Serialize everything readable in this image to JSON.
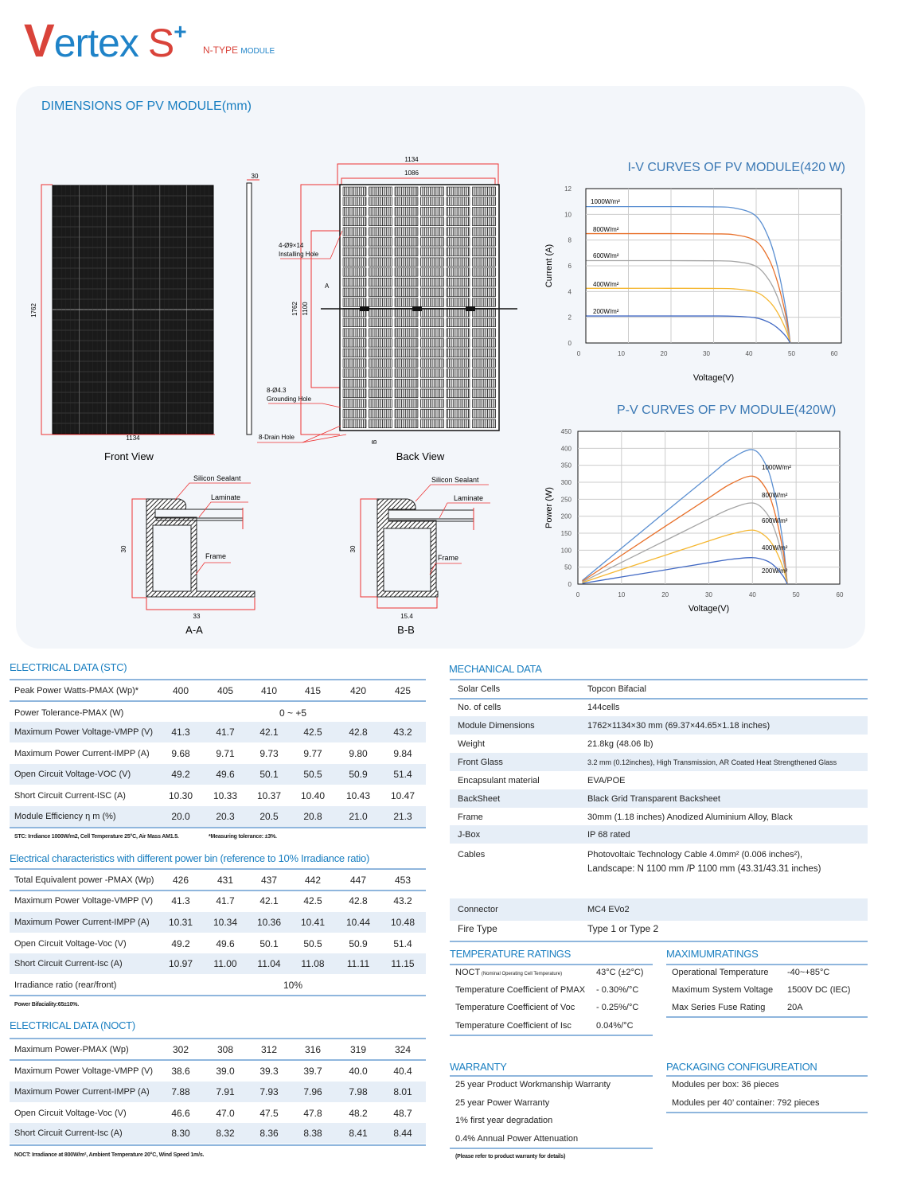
{
  "brand": {
    "logo_v": "V",
    "logo_rest": "ertex",
    "logo_s": "S",
    "logo_plus": "+",
    "type_red": "N-TYPE",
    "type_blue": "MODULE"
  },
  "dimensions": {
    "title": "DIMENSIONS OF PV MODULE(mm)",
    "front_view": "Front View",
    "back_view": "Back View",
    "front_height": "1762",
    "front_width": "1134",
    "side_thickness": "30",
    "back_outer_width": "1134",
    "back_inner_width": "1086",
    "back_height": "1762",
    "back_mount": "1100",
    "installing_hole_spec": "4-Ø9×14",
    "installing_hole": "Installing  Hole",
    "grounding_hole_spec": "8-Ø4.3",
    "grounding_hole": "Grounding Hole",
    "drain_hole": "8-Drain Hole",
    "section_a_marker": "A",
    "section_b_marker": "B",
    "sections": [
      {
        "name": "A-A",
        "height": "30",
        "width": "33",
        "sealant": "Silicon Sealant",
        "laminate": "Laminate",
        "frame": "Frame"
      },
      {
        "name": "B-B",
        "height": "30",
        "width": "15.4",
        "sealant": "Silicon Sealant",
        "laminate": "Laminate",
        "frame": "Frame"
      }
    ]
  },
  "chart_data": [
    {
      "type": "line",
      "title": "I-V CURVES OF PV MODULE(420 W)",
      "xlabel": "Voltage(V)",
      "ylabel": "Current (A)",
      "xlim": [
        0,
        60
      ],
      "ylim": [
        0,
        12
      ],
      "xticks": [
        0,
        10,
        20,
        30,
        40,
        50,
        60
      ],
      "yticks": [
        0,
        2,
        4,
        6,
        8,
        10,
        12
      ],
      "grid": true,
      "x": [
        1,
        10,
        20,
        30,
        35,
        40,
        43,
        45,
        47,
        48
      ],
      "series": [
        {
          "name": "1000W/m²",
          "color": "#5b8fd1",
          "values": [
            10.6,
            10.6,
            10.6,
            10.58,
            10.5,
            9.9,
            8.2,
            6.0,
            2.6,
            0
          ]
        },
        {
          "name": "800W/m²",
          "color": "#e8702a",
          "values": [
            8.5,
            8.5,
            8.5,
            8.48,
            8.42,
            7.94,
            6.58,
            4.81,
            2.09,
            0
          ]
        },
        {
          "name": "600W/m²",
          "color": "#a5a5a5",
          "values": [
            6.4,
            6.4,
            6.4,
            6.39,
            6.34,
            5.98,
            4.95,
            3.62,
            1.57,
            0
          ]
        },
        {
          "name": "400W/m²",
          "color": "#f5b731",
          "values": [
            4.25,
            4.25,
            4.25,
            4.24,
            4.21,
            3.97,
            3.29,
            2.41,
            1.04,
            0
          ]
        },
        {
          "name": "200W/m²",
          "color": "#4169c4",
          "values": [
            2.1,
            2.1,
            2.1,
            2.1,
            2.08,
            1.96,
            1.62,
            1.19,
            0.52,
            0
          ]
        }
      ]
    },
    {
      "type": "line",
      "title": "P-V CURVES OF PV MODULE(420W)",
      "xlabel": "Voltage(V)",
      "ylabel": "Power (W)",
      "xlim": [
        0,
        60
      ],
      "ylim": [
        0,
        450
      ],
      "xticks": [
        0,
        10,
        20,
        30,
        40,
        50,
        60
      ],
      "yticks": [
        0,
        50,
        100,
        150,
        200,
        250,
        300,
        350,
        400,
        450
      ],
      "grid": true,
      "x": [
        1,
        10,
        20,
        30,
        35,
        40,
        43,
        45,
        47,
        48
      ],
      "series": [
        {
          "name": "1000W/m²",
          "color": "#5b8fd1",
          "values": [
            10.6,
            106,
            212,
            317,
            368,
            396,
            353,
            270,
            122,
            0
          ]
        },
        {
          "name": "800W/m²",
          "color": "#e8702a",
          "values": [
            8.5,
            85,
            170,
            254,
            295,
            318,
            283,
            216,
            98,
            0
          ]
        },
        {
          "name": "600W/m²",
          "color": "#a5a5a5",
          "values": [
            6.4,
            64,
            128,
            192,
            222,
            239,
            213,
            163,
            74,
            0
          ]
        },
        {
          "name": "400W/m²",
          "color": "#f5b731",
          "values": [
            4.3,
            43,
            85,
            127,
            147,
            159,
            141,
            108,
            49,
            0
          ]
        },
        {
          "name": "200W/m²",
          "color": "#4169c4",
          "values": [
            2.1,
            21,
            42,
            63,
            73,
            78,
            70,
            54,
            24,
            0
          ]
        }
      ]
    }
  ],
  "stc": {
    "title": "ELECTRICAL DATA (STC)",
    "rows": [
      {
        "label": "Peak Power Watts-PMAX (Wp)*",
        "values": [
          "400",
          "405",
          "410",
          "415",
          "420",
          "425"
        ]
      },
      {
        "label": "Power Tolerance-PMAX (W)",
        "span": "0 ~ +5"
      },
      {
        "label": "Maximum Power Voltage-VMPP (V)",
        "values": [
          "41.3",
          "41.7",
          "42.1",
          "42.5",
          "42.8",
          "43.2"
        ],
        "shade": true
      },
      {
        "label": "Maximum Power Current-IMPP (A)",
        "values": [
          "9.68",
          "9.71",
          "9.73",
          "9.77",
          "9.80",
          "9.84"
        ]
      },
      {
        "label": "Open Circuit Voltage-VOC (V)",
        "values": [
          "49.2",
          "49.6",
          "50.1",
          "50.5",
          "50.9",
          "51.4"
        ],
        "shade": true
      },
      {
        "label": "Short Circuit Current-ISC (A)",
        "values": [
          "10.30",
          "10.33",
          "10.37",
          "10.40",
          "10.43",
          "10.47"
        ]
      },
      {
        "label": "Module Efficiency η m (%)",
        "values": [
          "20.0",
          "20.3",
          "20.5",
          "20.8",
          "21.0",
          "21.3"
        ],
        "shade": true
      }
    ],
    "note": "STC: Irrdiance 1000W/m2, Cell Temperature 25°C, Air Mass AM1.5.",
    "note2": "*Measuring tolerance: ±3%."
  },
  "bifacial": {
    "title": "Electrical characteristics with different power bin (reference to 10%  Irradiance ratio)",
    "rows": [
      {
        "label": "Total Equivalent power -PMAX (Wp)",
        "values": [
          "426",
          "431",
          "437",
          "442",
          "447",
          "453"
        ]
      },
      {
        "label": "Maximum Power Voltage-VMPP  (V)",
        "values": [
          "41.3",
          "41.7",
          "42.1",
          "42.5",
          "42.8",
          "43.2"
        ]
      },
      {
        "label": "Maximum Power Current-IMPP (A)",
        "values": [
          "10.31",
          "10.34",
          "10.36",
          "10.41",
          "10.44",
          "10.48"
        ],
        "shade": true
      },
      {
        "label": "Open Circuit Voltage-Voc  (V)",
        "values": [
          "49.2",
          "49.6",
          "50.1",
          "50.5",
          "50.9",
          "51.4"
        ]
      },
      {
        "label": "Short Circuit Current-Isc (A)",
        "values": [
          "10.97",
          "11.00",
          "11.04",
          "11.08",
          "11.11",
          "11.15"
        ],
        "shade": true
      },
      {
        "label": "Irradiance ratio (rear/front)",
        "span": "10%"
      }
    ],
    "note": "Power Bifaciality:65±10%."
  },
  "noct": {
    "title": "ELECTRICAL DATA (NOCT)",
    "rows": [
      {
        "label": "Maximum Power-PMAX (Wp)",
        "values": [
          "302",
          "308",
          "312",
          "316",
          "319",
          "324"
        ]
      },
      {
        "label": "Maximum Power Voltage-VMPP (V)",
        "values": [
          "38.6",
          "39.0",
          "39.3",
          "39.7",
          "40.0",
          "40.4"
        ]
      },
      {
        "label": "Maximum Power Current-IMPP (A)",
        "values": [
          "7.88",
          "7.91",
          "7.93",
          "7.96",
          "7.98",
          "8.01"
        ],
        "shade": true
      },
      {
        "label": "Open Circuit Voltage-Voc (V)",
        "values": [
          "46.6",
          "47.0",
          "47.5",
          "47.8",
          "48.2",
          "48.7"
        ]
      },
      {
        "label": "Short Circuit Current-Isc (A)",
        "values": [
          "8.30",
          "8.32",
          "8.36",
          "8.38",
          "8.41",
          "8.44"
        ],
        "shade": true
      }
    ],
    "note": "NOCT: Irradiance at 800W/m², Ambient Temperature 20°C, Wind Speed 1m/s."
  },
  "mechanical": {
    "title": "MECHANICAL DATA",
    "rows": [
      {
        "label": "Solar Cells",
        "value": "Topcon Bifacial"
      },
      {
        "label": "No. of cells",
        "value": "144cells"
      },
      {
        "label": "Module Dimensions",
        "value": "1762×1134×30 mm (69.37×44.65×1.18 inches)",
        "shade": true
      },
      {
        "label": "Weight",
        "value": "21.8kg (48.06 lb)"
      },
      {
        "label": "Front Glass",
        "value": "3.2 mm (0.12inches), High Transmission, AR Coated Heat Strengthened Glass",
        "shade": true
      },
      {
        "label": "Encapsulant material",
        "value": "EVA/POE"
      },
      {
        "label": "BackSheet",
        "value": "Black Grid Transparent Backsheet",
        "shade": true
      },
      {
        "label": "Frame",
        "value": "30mm (1.18 inches)  Anodized  Aluminium Alloy, Black"
      },
      {
        "label": "J-Box",
        "value": "IP 68 rated",
        "shade": true
      },
      {
        "label": "Cables",
        "value": "Photovoltaic Technology Cable 4.0mm² (0.006 inches²),",
        "value2": "Landscape: N 1100 mm /P 1100 mm (43.31/43.31 inches)"
      },
      {
        "label": "Connector",
        "value": "MC4 EVo2",
        "shade": true
      },
      {
        "label": "Fire Type",
        "value": "Type 1 or Type 2"
      }
    ]
  },
  "temperature": {
    "title": "TEMPERATURE RATINGS",
    "rows": [
      {
        "label": "NOCT",
        "sub": "(Nominal Operating Cell Temperature)",
        "value": "43°C (±2°C)"
      },
      {
        "label": "Temperature Coefficient of PMAX",
        "value": "- 0.30%/°C"
      },
      {
        "label": "Temperature Coefficient of Voc",
        "value": "- 0.25%/°C"
      },
      {
        "label": "Temperature Coefficient of Isc",
        "value": "0.04%/°C"
      }
    ]
  },
  "maximum": {
    "title": "MAXIMUMRATINGS",
    "rows": [
      {
        "label": "Operational Temperature",
        "value": "-40~+85°C"
      },
      {
        "label": "Maximum System Voltage",
        "value": "1500V DC (IEC)"
      },
      {
        "label": "Max Series Fuse Rating",
        "value": "20A"
      }
    ]
  },
  "warranty": {
    "title": "WARRANTY",
    "items": [
      "25 year Product Workmanship Warranty",
      "25 year Power Warranty",
      "1% first year degradation",
      "0.4% Annual Power Attenuation"
    ],
    "note": "(Please refer to product warranty for details)"
  },
  "packaging": {
    "title": "PACKAGING CONFIGUREATION",
    "items": [
      "Modules per box: 36 pieces",
      "Modules per 40’ container: 792 pieces"
    ]
  }
}
